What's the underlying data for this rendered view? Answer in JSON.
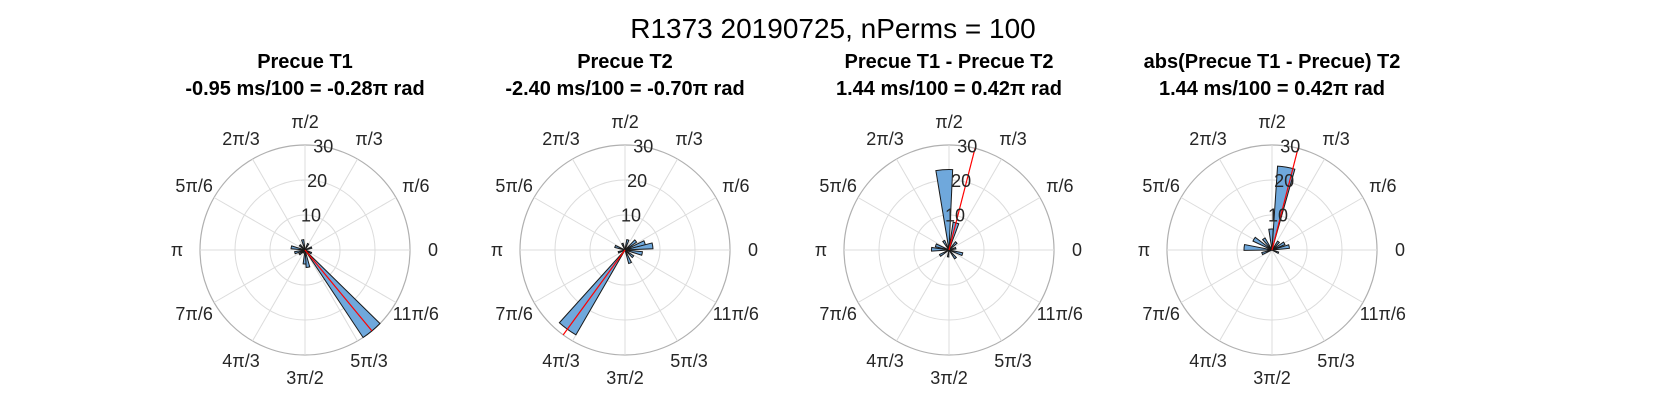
{
  "figure": {
    "suptitle": "R1373 20190725, nPerms = 100"
  },
  "chart_data": [
    {
      "type": "polar-histogram",
      "title_line1": "Precue T1",
      "title_line2": "-0.95 ms/100 = -0.28π rad",
      "rlim": [
        0,
        30
      ],
      "r_ticks": [
        10,
        20,
        30
      ],
      "angle_tick_labels": [
        "0",
        "π/6",
        "π/3",
        "π/2",
        "2π/3",
        "5π/6",
        "π",
        "7π/6",
        "4π/3",
        "3π/2",
        "5π/3",
        "11π/6"
      ],
      "mean_angle_rad": -0.88,
      "bins": [
        {
          "angle": -0.88,
          "count": 30
        },
        {
          "angle": -1.4,
          "count": 5
        },
        {
          "angle": -1.6,
          "count": 4
        },
        {
          "angle": 0.35,
          "count": 2
        },
        {
          "angle": 1.1,
          "count": 2
        },
        {
          "angle": 1.8,
          "count": 3
        },
        {
          "angle": 2.4,
          "count": 2
        },
        {
          "angle": 2.95,
          "count": 4
        },
        {
          "angle": 3.4,
          "count": 3
        },
        {
          "angle": 3.8,
          "count": 2
        },
        {
          "angle": -0.45,
          "count": 2
        },
        {
          "angle": -2.2,
          "count": 1
        }
      ]
    },
    {
      "type": "polar-histogram",
      "title_line1": "Precue T2",
      "title_line2": "-2.40 ms/100 = -0.70π rad",
      "rlim": [
        0,
        30
      ],
      "r_ticks": [
        10,
        20,
        30
      ],
      "angle_tick_labels": [
        "0",
        "π/6",
        "π/3",
        "π/2",
        "2π/3",
        "5π/6",
        "π",
        "7π/6",
        "4π/3",
        "3π/2",
        "5π/3",
        "11π/6"
      ],
      "mean_angle_rad": -2.2,
      "bins": [
        {
          "angle": -2.2,
          "count": 28
        },
        {
          "angle": 0.35,
          "count": 6
        },
        {
          "angle": 0.15,
          "count": 8
        },
        {
          "angle": -0.2,
          "count": 5
        },
        {
          "angle": 0.7,
          "count": 4
        },
        {
          "angle": 1.3,
          "count": 3
        },
        {
          "angle": -1.2,
          "count": 4
        },
        {
          "angle": -0.7,
          "count": 3
        },
        {
          "angle": 2.8,
          "count": 3
        },
        {
          "angle": -2.8,
          "count": 2
        },
        {
          "angle": 1.95,
          "count": 2
        }
      ]
    },
    {
      "type": "polar-histogram",
      "title_line1": "Precue T1 - Precue T2",
      "title_line2": "1.44 ms/100 = 0.42π rad",
      "rlim": [
        0,
        30
      ],
      "r_ticks": [
        10,
        20,
        30
      ],
      "angle_tick_labels": [
        "0",
        "π/6",
        "π/3",
        "π/2",
        "2π/3",
        "5π/6",
        "π",
        "7π/6",
        "4π/3",
        "3π/2",
        "5π/3",
        "11π/6"
      ],
      "mean_angle_rad": 1.32,
      "bins": [
        {
          "angle": 1.63,
          "count": 23
        },
        {
          "angle": 1.32,
          "count": 8
        },
        {
          "angle": 0.8,
          "count": 3
        },
        {
          "angle": 2.1,
          "count": 3
        },
        {
          "angle": 2.8,
          "count": 4
        },
        {
          "angle": 3.1,
          "count": 5
        },
        {
          "angle": -2.6,
          "count": 3
        },
        {
          "angle": -0.9,
          "count": 3
        },
        {
          "angle": -0.3,
          "count": 4
        },
        {
          "angle": 0.25,
          "count": 2
        },
        {
          "angle": -1.7,
          "count": 2
        }
      ]
    },
    {
      "type": "polar-histogram",
      "title_line1": "abs(Precue T1 - Precue) T2",
      "title_line2": "1.44 ms/100 = 0.42π rad",
      "rlim": [
        0,
        30
      ],
      "r_ticks": [
        10,
        20,
        30
      ],
      "angle_tick_labels": [
        "0",
        "π/6",
        "π/3",
        "π/2",
        "2π/3",
        "5π/6",
        "π",
        "7π/6",
        "4π/3",
        "3π/2",
        "5π/3",
        "11π/6"
      ],
      "mean_angle_rad": 1.32,
      "bins": [
        {
          "angle": 1.4,
          "count": 24
        },
        {
          "angle": 1.62,
          "count": 6
        },
        {
          "angle": 2.6,
          "count": 6
        },
        {
          "angle": 3.05,
          "count": 8
        },
        {
          "angle": 2.2,
          "count": 4
        },
        {
          "angle": 0.5,
          "count": 4
        },
        {
          "angle": 0.2,
          "count": 5
        },
        {
          "angle": 0.9,
          "count": 3
        },
        {
          "angle": -2.8,
          "count": 3
        },
        {
          "angle": -0.4,
          "count": 2
        }
      ]
    }
  ]
}
